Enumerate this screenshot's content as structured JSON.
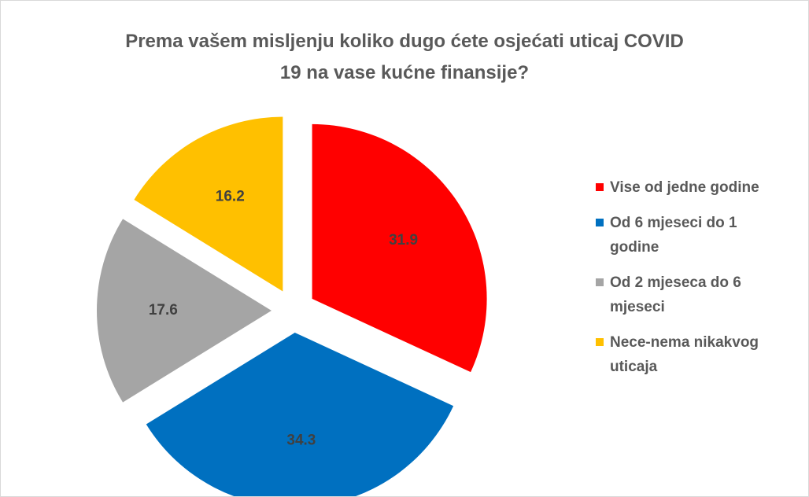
{
  "chart_data": {
    "type": "pie",
    "title": "Prema vašem misljenju koliko dugo ćete osjećati uticaj COVID 19 na vase kućne finansije?",
    "categories": [
      "Vise od jedne godine",
      "Od 6 mjeseci do 1 godine",
      "Od 2 mjeseca do 6 mjeseci",
      "Nece-nema nikakvog uticaja"
    ],
    "values": [
      31.9,
      34.3,
      17.6,
      16.2
    ],
    "colors": [
      "#ff0000",
      "#0070c0",
      "#a5a5a5",
      "#ffc000"
    ],
    "legend": "right"
  }
}
